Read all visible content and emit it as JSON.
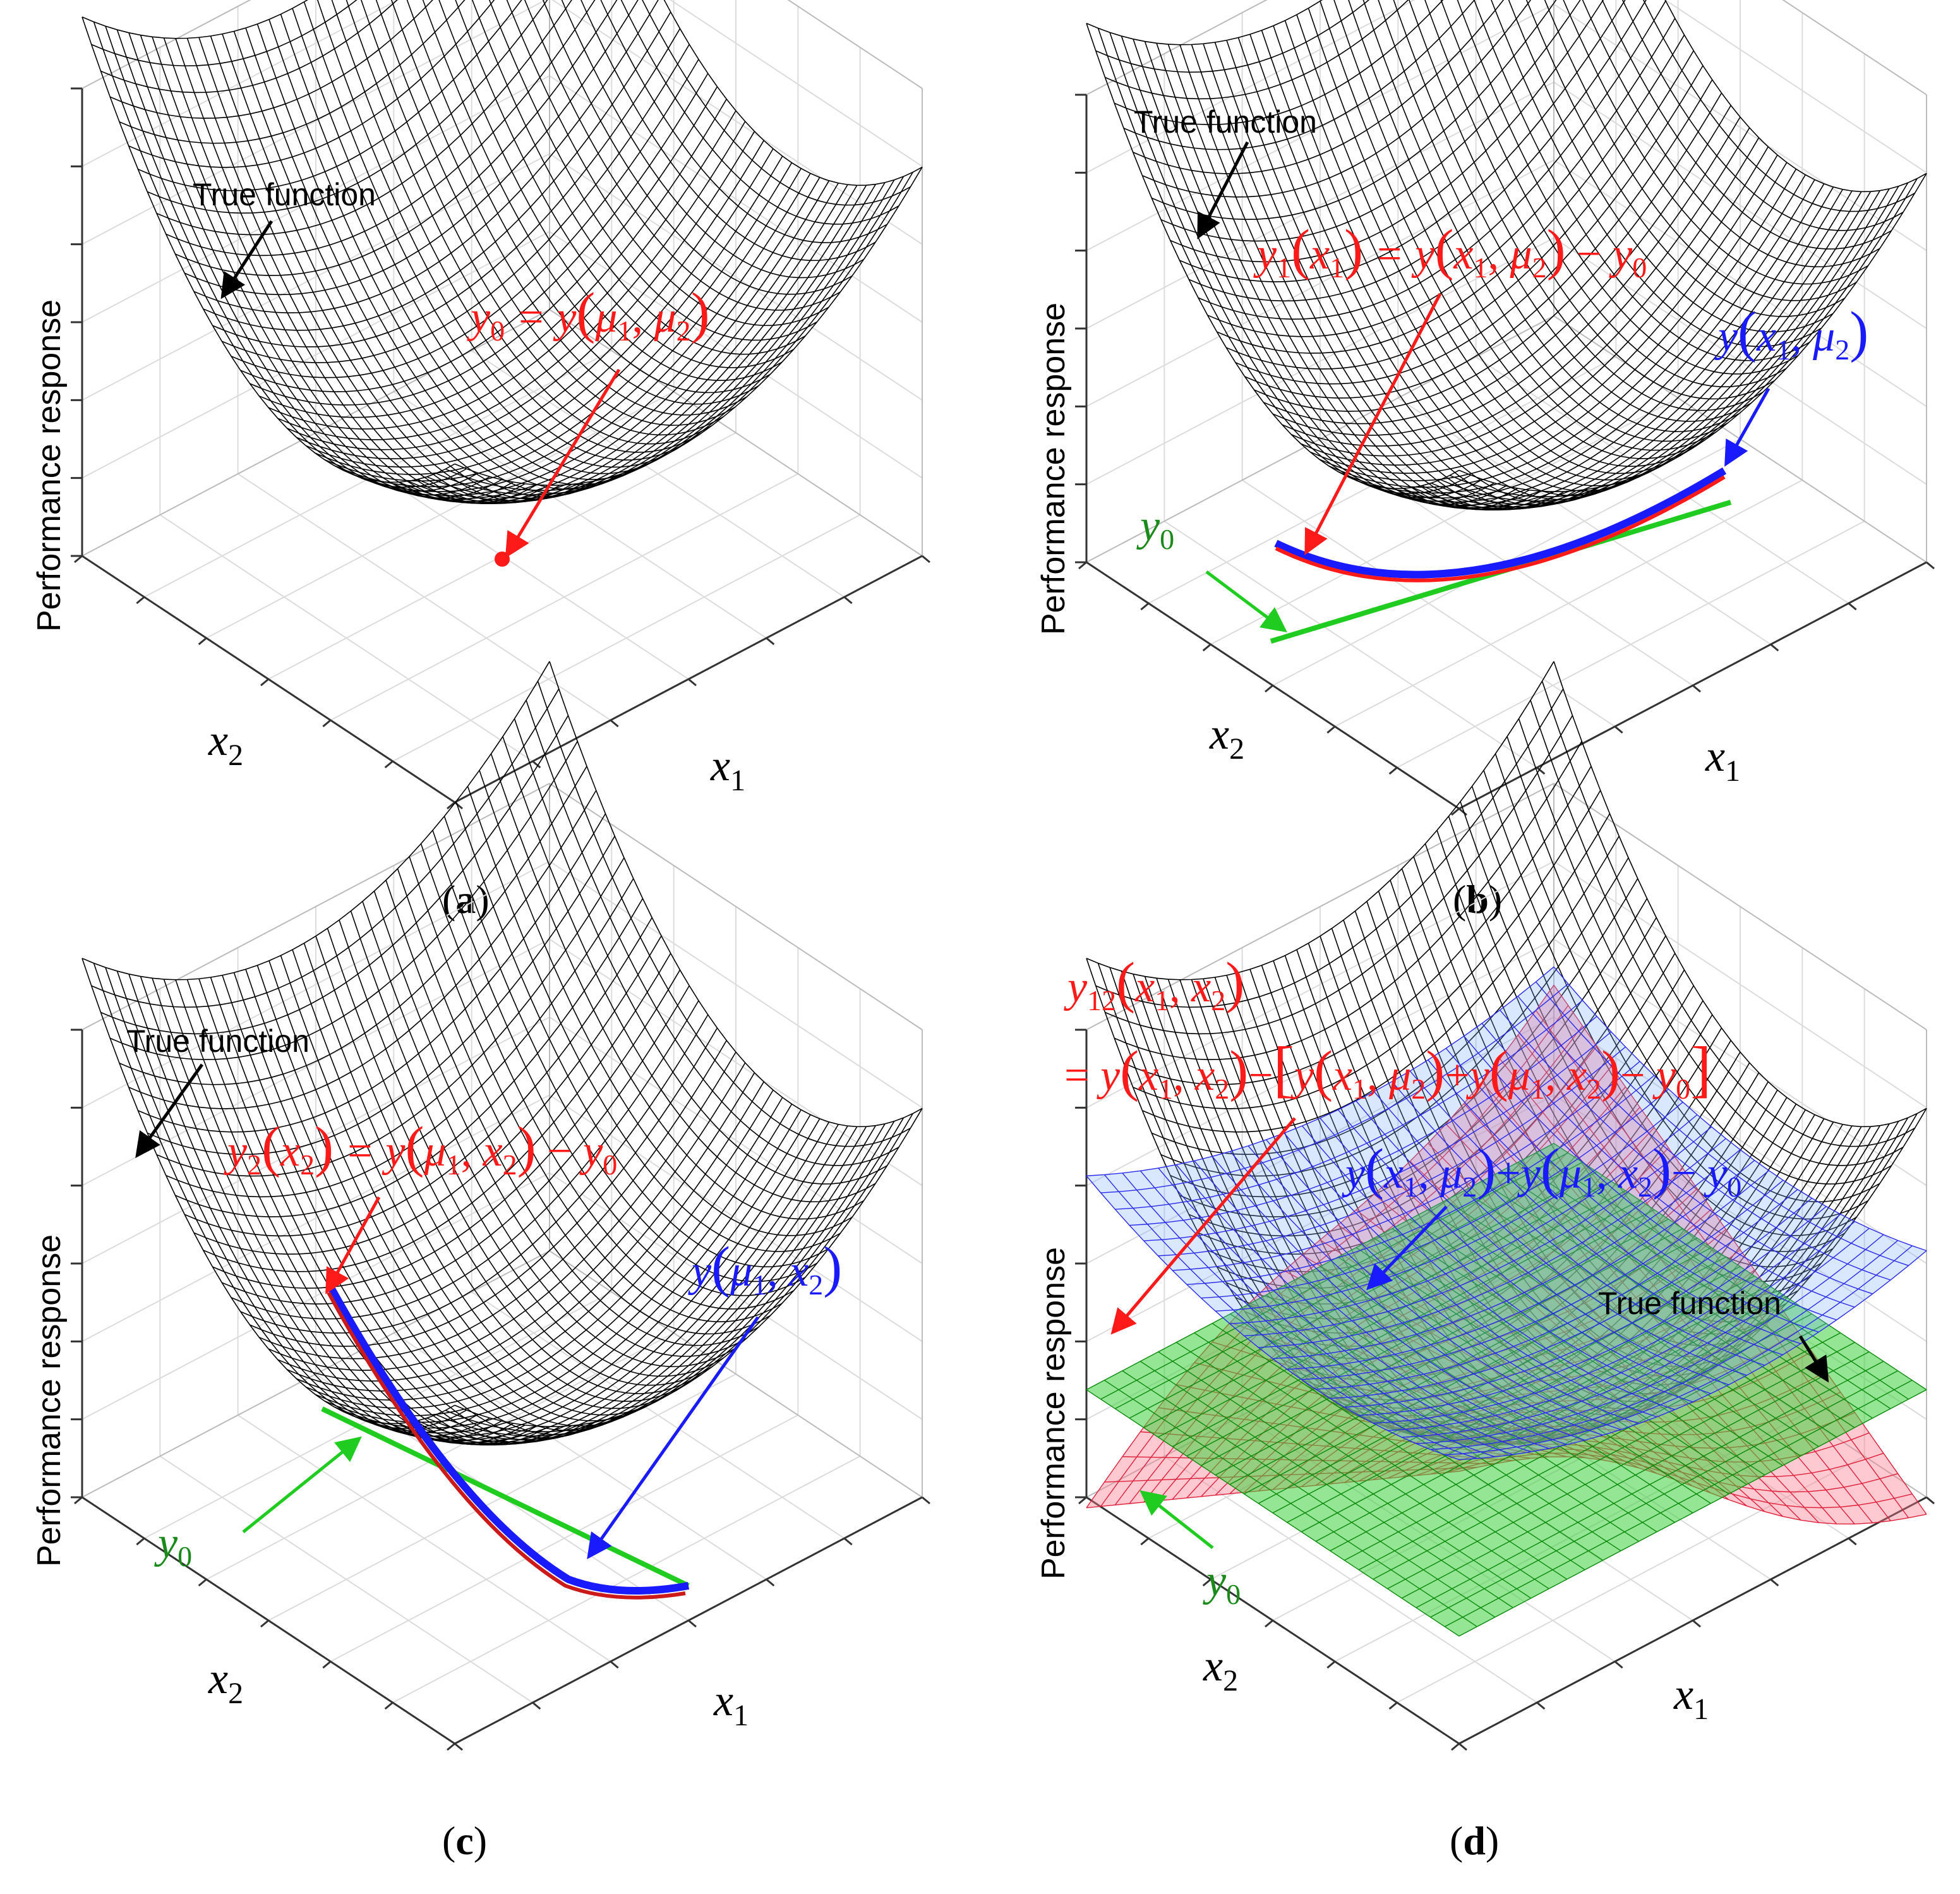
{
  "colors": {
    "surface": "#000000",
    "red": "#ff1a1a",
    "blue": "#1a1aff",
    "green": "#1fcc1f",
    "green_text": "#1a8a1a",
    "grid": "#dcdcdc",
    "box": "#333333"
  },
  "axes": {
    "ylabel": "Performance response",
    "x1": "x",
    "x1_sub": "1",
    "x2": "x",
    "x2_sub": "2"
  },
  "panels": {
    "a": {
      "caption": "a",
      "true_function": "True function",
      "y0": {
        "y": "y",
        "sub0": "0",
        "eq": " = y",
        "mu": "μ",
        "s1": "1",
        "comma": ", ",
        "s2": "2",
        "open": "(",
        "close": ")"
      }
    },
    "b": {
      "caption": "b",
      "true_function": "True function",
      "y1": {
        "y": "y",
        "s1": "1",
        "x": "x",
        "sx1": "1",
        "mu": "μ",
        "s2": "2",
        "y0": "y",
        "s0": "0",
        "eq": " = y",
        "minus": " − "
      },
      "curve": {
        "y": "y",
        "x": "x",
        "s1": "1",
        "mu": "μ",
        "s2": "2"
      },
      "y0": {
        "y": "y",
        "sub0": "0"
      }
    },
    "c": {
      "caption": "c",
      "true_function": "True function",
      "y2": {
        "y": "y",
        "s2": "2",
        "x": "x",
        "mu": "μ",
        "s1": "1",
        "y0": "y",
        "s0": "0",
        "eq": " = y",
        "minus": " − "
      },
      "curve": {
        "y": "y",
        "mu": "μ",
        "s1": "1",
        "x": "x",
        "s2": "2"
      },
      "y0": {
        "y": "y",
        "sub0": "0"
      }
    },
    "d": {
      "caption": "d",
      "true_function": "True function",
      "y12": {
        "y": "y",
        "s12": "12",
        "x": "x",
        "s1": "1",
        "s2": "2"
      },
      "y12_rhs": {
        "eq": "= ",
        "y": "y",
        "x": "x",
        "s1": "1",
        "s2": "2",
        "mu": "μ",
        "s0": "0"
      },
      "additive": {
        "y": "y",
        "x": "x",
        "mu": "μ",
        "s1": "1",
        "s2": "2",
        "s0": "0"
      },
      "y0": {
        "y": "y",
        "sub0": "0"
      }
    }
  }
}
